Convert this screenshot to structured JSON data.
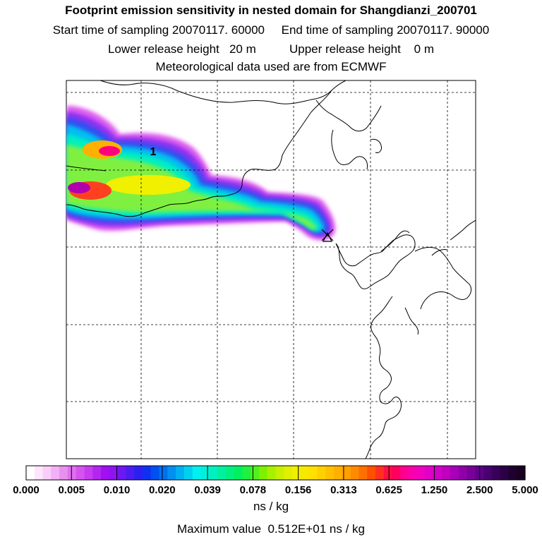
{
  "chart_data": {
    "type": "heatmap",
    "title_lines": [
      "Footprint emission sensitivity in nested domain for Shangdianzi_200701",
      "Start time of sampling 20070117. 60000     End time of sampling 20070117. 90000",
      "Lower release height   20 m          Upper release height    0 m",
      "Meteorological data used are from ECMWF"
    ],
    "contour_label": "1",
    "colorbar": {
      "unit": "ns / kg",
      "tick_labels": [
        "0.000",
        "0.005",
        "0.010",
        "0.020",
        "0.039",
        "0.078",
        "0.156",
        "0.313",
        "0.625",
        "1.250",
        "2.500",
        "5.000"
      ],
      "colors": [
        "#ffffff",
        "#fde6fd",
        "#f9cdf9",
        "#f3b0f5",
        "#e890ee",
        "#e070ee",
        "#d455ee",
        "#c83cf0",
        "#b425f0",
        "#a010f0",
        "#8c14f0",
        "#6c18f0",
        "#4c1cf0",
        "#2c20f0",
        "#1030f0",
        "#0050f0",
        "#0070f0",
        "#0090f0",
        "#00b0f0",
        "#00d0f0",
        "#00f0f0",
        "#00f0d8",
        "#00f0c0",
        "#00f0a0",
        "#00f080",
        "#00f060",
        "#20f040",
        "#50f020",
        "#80f000",
        "#a8f000",
        "#c8f000",
        "#e0f000",
        "#f0f000",
        "#f8e800",
        "#ffe000",
        "#ffd000",
        "#ffc000",
        "#ffb000",
        "#ffa000",
        "#ff8c00",
        "#ff7000",
        "#ff5000",
        "#ff3020",
        "#ff1040",
        "#ff0060",
        "#ff0090",
        "#f800b0",
        "#f000c0",
        "#e000c8",
        "#d000c8",
        "#c000c0",
        "#a800b8",
        "#9000a8",
        "#780098",
        "#600088",
        "#480070",
        "#380058",
        "#2c0044",
        "#200030",
        "#180020"
      ]
    },
    "max_value_text": "Maximum value  0.512E+01 ns / kg",
    "plume_levels": [
      {
        "level": 0.005,
        "color": "#e060f0"
      },
      {
        "level": 0.01,
        "color": "#9030f0"
      },
      {
        "level": 0.02,
        "color": "#3050f0"
      },
      {
        "level": 0.039,
        "color": "#00c0f0"
      },
      {
        "level": 0.078,
        "color": "#00f0c0"
      },
      {
        "level": 0.156,
        "color": "#80f040"
      },
      {
        "level": 0.313,
        "color": "#f0f000"
      },
      {
        "level": 0.625,
        "color": "#ffb000"
      },
      {
        "level": 1.25,
        "color": "#ff4020"
      },
      {
        "level": 2.5,
        "color": "#ff0080"
      },
      {
        "level": 5.0,
        "color": "#b000b0"
      }
    ]
  }
}
